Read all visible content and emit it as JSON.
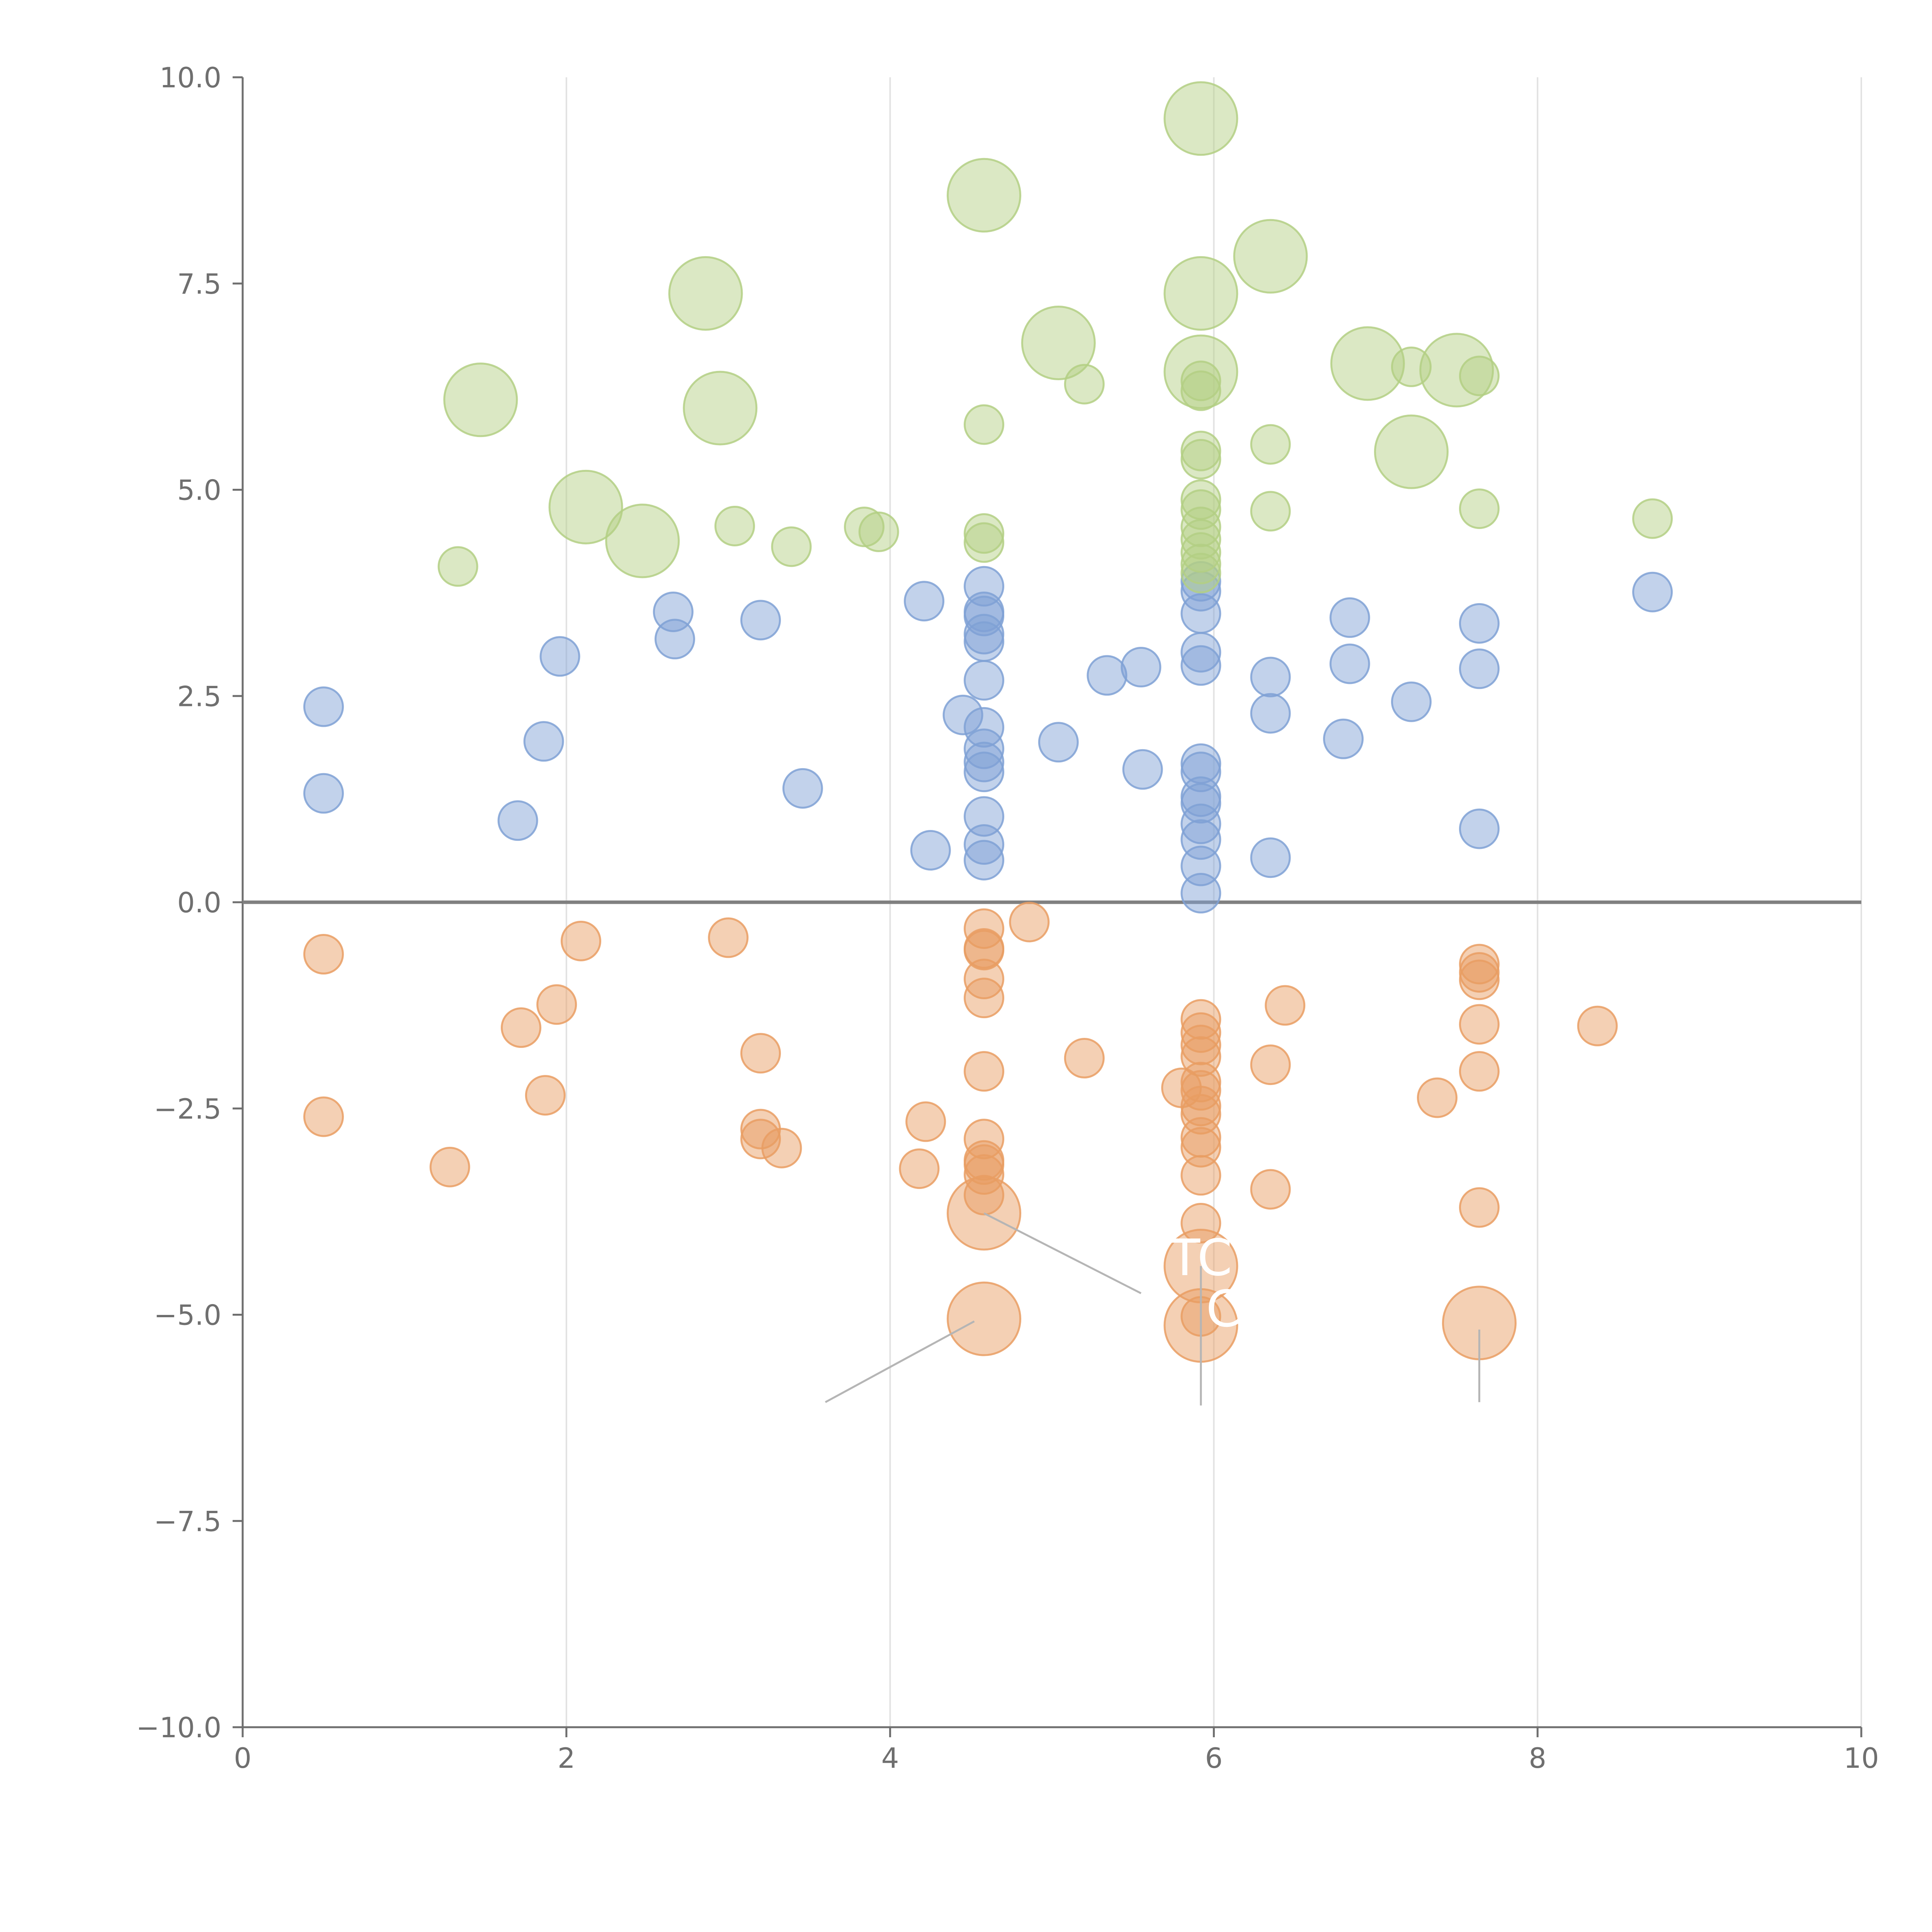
{
  "chart_data": {
    "type": "scatter",
    "title": "",
    "xlabel": "",
    "ylabel": "",
    "xlim": [
      0,
      10
    ],
    "ylim": [
      -10,
      10
    ],
    "x_ticks": [
      0,
      2,
      4,
      6,
      8,
      10
    ],
    "y_ticks": [
      -10.0,
      -7.5,
      -5.0,
      -2.5,
      0.0,
      2.5,
      5.0,
      7.5,
      10.0
    ],
    "x_tick_labels": [
      "0",
      "2",
      "4",
      "6",
      "8",
      "10"
    ],
    "y_tick_labels": [
      "−10.0",
      "−7.5",
      "−5.0",
      "−2.5",
      "0.0",
      "2.5",
      "5.0",
      "7.5",
      "10.0"
    ],
    "grid": "vertical",
    "reference_line_y": 0,
    "colors": {
      "blue": "#7fa1d5",
      "green": "#b3cf84",
      "orange": "#e99d63",
      "axis": "#6f6f6f",
      "grid": "#e2e2e2",
      "zero_line": "#808080",
      "connector": "#b5b5b5"
    },
    "series": [
      {
        "name": "blue",
        "color_key": "blue",
        "size": 1,
        "points": [
          [
            0.5,
            2.37
          ],
          [
            0.5,
            1.32
          ],
          [
            1.7,
            0.99
          ],
          [
            1.86,
            1.95
          ],
          [
            1.96,
            2.98
          ],
          [
            2.66,
            3.52
          ],
          [
            2.67,
            3.19
          ],
          [
            3.2,
            3.42
          ],
          [
            3.46,
            1.38
          ],
          [
            4.21,
            3.65
          ],
          [
            4.25,
            0.63
          ],
          [
            4.45,
            2.27
          ],
          [
            4.58,
            3.83
          ],
          [
            4.58,
            3.52
          ],
          [
            4.58,
            3.47
          ],
          [
            4.58,
            3.25
          ],
          [
            4.58,
            3.16
          ],
          [
            4.58,
            2.69
          ],
          [
            4.58,
            2.12
          ],
          [
            4.58,
            1.86
          ],
          [
            4.58,
            1.7
          ],
          [
            4.58,
            1.58
          ],
          [
            4.58,
            1.04
          ],
          [
            4.58,
            0.7
          ],
          [
            4.58,
            0.51
          ],
          [
            5.04,
            1.94
          ],
          [
            5.34,
            2.75
          ],
          [
            5.55,
            2.85
          ],
          [
            5.56,
            1.61
          ],
          [
            5.92,
            3.89
          ],
          [
            5.92,
            3.77
          ],
          [
            5.92,
            3.5
          ],
          [
            5.92,
            3.03
          ],
          [
            5.92,
            2.87
          ],
          [
            5.92,
            1.68
          ],
          [
            5.92,
            1.58
          ],
          [
            5.92,
            1.28
          ],
          [
            5.92,
            1.2
          ],
          [
            5.92,
            0.95
          ],
          [
            5.92,
            0.76
          ],
          [
            5.92,
            0.44
          ],
          [
            5.92,
            0.11
          ],
          [
            6.35,
            2.73
          ],
          [
            6.35,
            2.29
          ],
          [
            6.35,
            0.54
          ],
          [
            6.8,
            1.98
          ],
          [
            6.84,
            3.45
          ],
          [
            6.84,
            2.89
          ],
          [
            7.22,
            2.43
          ],
          [
            7.64,
            3.38
          ],
          [
            7.64,
            2.83
          ],
          [
            7.64,
            0.89
          ],
          [
            8.71,
            3.76
          ]
        ]
      },
      {
        "name": "green",
        "color_key": "green",
        "size": 1,
        "points": [
          [
            1.33,
            4.07
          ],
          [
            3.04,
            4.56
          ],
          [
            3.39,
            4.31
          ],
          [
            3.84,
            4.55
          ],
          [
            3.93,
            4.49
          ],
          [
            4.58,
            5.79
          ],
          [
            4.58,
            4.47
          ],
          [
            4.58,
            4.36
          ],
          [
            5.2,
            6.28
          ],
          [
            5.92,
            6.32
          ],
          [
            5.92,
            6.2
          ],
          [
            5.92,
            5.47
          ],
          [
            5.92,
            5.37
          ],
          [
            5.92,
            4.88
          ],
          [
            5.92,
            4.76
          ],
          [
            5.92,
            4.55
          ],
          [
            5.92,
            4.4
          ],
          [
            5.92,
            4.24
          ],
          [
            5.92,
            4.1
          ],
          [
            5.92,
            3.99
          ],
          [
            6.35,
            5.55
          ],
          [
            6.35,
            4.74
          ],
          [
            7.22,
            6.49
          ],
          [
            7.64,
            6.38
          ],
          [
            7.64,
            4.77
          ],
          [
            8.71,
            4.65
          ]
        ]
      },
      {
        "name": "orange",
        "color_key": "orange",
        "size": 1,
        "points": [
          [
            0.5,
            -0.63
          ],
          [
            0.5,
            -2.6
          ],
          [
            1.28,
            -3.21
          ],
          [
            1.72,
            -1.52
          ],
          [
            1.87,
            -2.34
          ],
          [
            1.94,
            -1.24
          ],
          [
            2.09,
            -0.47
          ],
          [
            3.0,
            -0.43
          ],
          [
            3.2,
            -1.83
          ],
          [
            3.2,
            -2.75
          ],
          [
            3.2,
            -2.87
          ],
          [
            3.33,
            -2.98
          ],
          [
            4.18,
            -3.23
          ],
          [
            4.22,
            -2.66
          ],
          [
            4.58,
            -0.32
          ],
          [
            4.58,
            -0.56
          ],
          [
            4.58,
            -0.58
          ],
          [
            4.58,
            -0.93
          ],
          [
            4.58,
            -1.16
          ],
          [
            4.58,
            -2.05
          ],
          [
            4.58,
            -2.87
          ],
          [
            4.58,
            -3.13
          ],
          [
            4.58,
            -3.18
          ],
          [
            4.58,
            -3.3
          ],
          [
            4.58,
            -3.55
          ],
          [
            4.86,
            -0.24
          ],
          [
            5.2,
            -1.89
          ],
          [
            5.8,
            -2.25
          ],
          [
            5.92,
            -1.42
          ],
          [
            5.92,
            -1.58
          ],
          [
            5.92,
            -1.73
          ],
          [
            5.92,
            -1.87
          ],
          [
            5.92,
            -2.18
          ],
          [
            5.92,
            -2.28
          ],
          [
            5.92,
            -2.47
          ],
          [
            5.92,
            -2.57
          ],
          [
            5.92,
            -2.85
          ],
          [
            5.92,
            -2.97
          ],
          [
            5.92,
            -3.31
          ],
          [
            5.92,
            -3.89
          ],
          [
            5.92,
            -5.02
          ],
          [
            6.35,
            -1.97
          ],
          [
            6.35,
            -3.48
          ],
          [
            6.44,
            -1.25
          ],
          [
            7.38,
            -2.37
          ],
          [
            7.64,
            -0.75
          ],
          [
            7.64,
            -0.85
          ],
          [
            7.64,
            -0.94
          ],
          [
            7.64,
            -1.48
          ],
          [
            7.64,
            -2.05
          ],
          [
            7.64,
            -3.7
          ],
          [
            8.37,
            -1.5
          ]
        ]
      },
      {
        "name": "green-large",
        "color_key": "green",
        "size": 2,
        "points": [
          [
            1.47,
            6.09
          ],
          [
            2.12,
            4.79
          ],
          [
            2.47,
            4.38
          ],
          [
            2.86,
            7.38
          ],
          [
            2.95,
            5.99
          ],
          [
            4.58,
            8.57
          ],
          [
            5.04,
            6.78
          ],
          [
            5.92,
            9.5
          ],
          [
            5.92,
            7.38
          ],
          [
            5.92,
            6.43
          ],
          [
            6.35,
            7.83
          ],
          [
            6.95,
            6.53
          ],
          [
            7.22,
            5.46
          ],
          [
            7.5,
            6.45
          ]
        ]
      },
      {
        "name": "orange-large",
        "color_key": "orange",
        "size": 2,
        "points": [
          [
            4.58,
            -3.77
          ],
          [
            4.58,
            -5.05
          ],
          [
            5.92,
            -4.41
          ],
          [
            5.92,
            -5.13
          ],
          [
            7.64,
            -5.1
          ]
        ]
      }
    ],
    "connectors": [
      {
        "from": [
          4.58,
          -3.77
        ],
        "to": [
          5.55,
          -4.74
        ]
      },
      {
        "from": [
          4.52,
          -5.08
        ],
        "to": [
          3.6,
          -6.06
        ]
      },
      {
        "from": [
          5.92,
          -4.41
        ],
        "to": [
          5.92,
          -6.1
        ]
      },
      {
        "from": [
          7.64,
          -5.18
        ],
        "to": [
          7.64,
          -6.06
        ]
      }
    ],
    "annotations": [
      {
        "text": "TC",
        "x": 5.92,
        "y": -4.52
      },
      {
        "text": "C",
        "x": 6.06,
        "y": -5.14
      }
    ]
  }
}
